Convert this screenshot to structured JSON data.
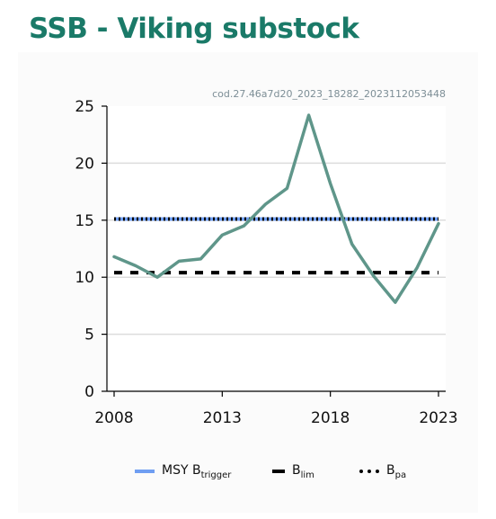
{
  "title": "SSB - Viking substock",
  "plot_id": "cod.27.46a7d20_2023_18282_2023112053448",
  "colors": {
    "title": "#1a7a68",
    "ssb_line": "#5f968a",
    "msy_btrigger": "#6f9ef2",
    "blim": "#000000",
    "bpa": "#000000",
    "grid": "#dcdcdc",
    "axis": "#000000"
  },
  "legend": {
    "msy": {
      "main": "MSY B",
      "sub": "trigger"
    },
    "blim": {
      "main": "B",
      "sub": "lim"
    },
    "bpa": {
      "main": "B",
      "sub": "pa"
    }
  },
  "chart_data": {
    "type": "line",
    "x": [
      2008,
      2009,
      2010,
      2011,
      2012,
      2013,
      2014,
      2015,
      2016,
      2017,
      2018,
      2019,
      2020,
      2021,
      2022,
      2023
    ],
    "series": [
      {
        "values": [
          11.8,
          11.0,
          10.0,
          11.4,
          11.6,
          13.7,
          14.5,
          16.4,
          17.8,
          24.2,
          18.2,
          12.9,
          10.1,
          7.8,
          10.8,
          14.7
        ]
      }
    ],
    "reference_lines": [
      {
        "name": "MSY Btrigger",
        "value": 15.1,
        "style": "solid"
      },
      {
        "name": "Blim",
        "value": 10.4,
        "style": "dashed"
      },
      {
        "name": "Bpa",
        "value": 15.1,
        "style": "dotted"
      }
    ],
    "xlim": [
      2008,
      2023
    ],
    "ylim": [
      0,
      25
    ],
    "xticks": [
      "2008",
      "2013",
      "2018",
      "2023"
    ],
    "yticks": [
      "0",
      "5",
      "10",
      "15",
      "20",
      "25"
    ],
    "grid": "horizontal",
    "legend_position": "bottom"
  }
}
